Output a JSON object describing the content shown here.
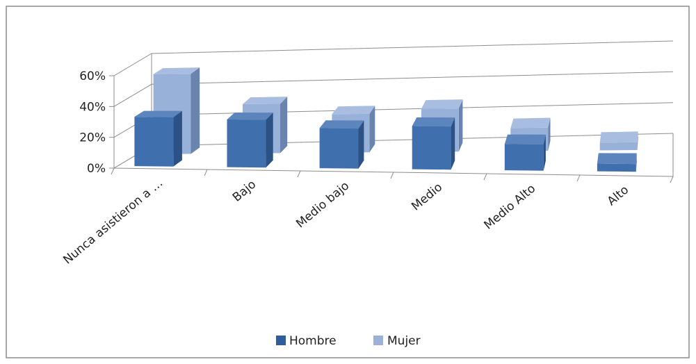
{
  "chart_data": {
    "type": "bar",
    "title": "",
    "xlabel": "",
    "ylabel": "",
    "ylim": [
      0,
      60
    ],
    "y_ticks": [
      "0%",
      "20%",
      "40%",
      "60%"
    ],
    "y_tick_values": [
      0,
      20,
      40,
      60
    ],
    "categories": [
      "Nunca asistieron a …",
      "Bajo",
      "Medio bajo",
      "Medio",
      "Medio Alto",
      "Alto"
    ],
    "series": [
      {
        "name": "Hombre",
        "values": [
          32,
          31,
          26,
          28,
          17,
          5
        ],
        "color": "#4472c4"
      },
      {
        "name": "Mujer",
        "values": [
          52,
          32,
          25,
          28,
          15,
          5
        ],
        "color": "#8ea9db"
      }
    ],
    "grid": true,
    "legend_position": "bottom"
  }
}
